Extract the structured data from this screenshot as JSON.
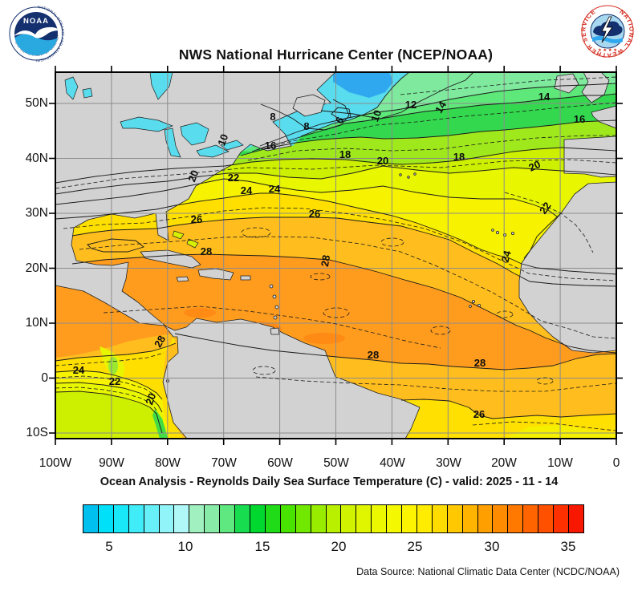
{
  "header": {
    "title": "NWS National Hurricane Center (NCEP/NOAA)"
  },
  "logos": {
    "noaa_name": "NOAA",
    "noaa_ring_top": "NATIONAL OCEANIC AND ATMOSPHERIC ADMINISTRATION",
    "noaa_ring_bottom": "U.S. DEPARTMENT OF COMMERCE",
    "nws_ring": "NATIONAL WEATHER SERVICE",
    "nws_stars": "★ ★ ★ ★"
  },
  "map": {
    "lat_labels": [
      "50N",
      "40N",
      "30N",
      "20N",
      "10N",
      "0",
      "10S"
    ],
    "lon_labels": [
      "100W",
      "90W",
      "80W",
      "70W",
      "60W",
      "50W",
      "40W",
      "30W",
      "20W",
      "10W",
      "0"
    ],
    "contour_labels": [
      "8",
      "8",
      "10",
      "6",
      "10",
      "12",
      "14",
      "14",
      "16",
      "16",
      "18",
      "18",
      "20",
      "20",
      "20",
      "22",
      "22",
      "22",
      "24",
      "24",
      "24",
      "24",
      "26",
      "26",
      "26",
      "28",
      "28",
      "28",
      "28",
      "28",
      "20"
    ],
    "contour_interval_c": "solid = 2C, dashed = 1C"
  },
  "caption": "Ocean Analysis - Reynolds Daily Sea Surface Temperature (C) - valid: 2025 - 11 - 14",
  "credit": "Data Source: National Climatic Data Center (NCDC/NOAA)",
  "colorbar": {
    "units": "C",
    "range": [
      3,
      36
    ],
    "ticks": [
      "5",
      "10",
      "15",
      "20",
      "25",
      "30",
      "35"
    ],
    "colors": [
      "#00C0F0",
      "#00E0F8",
      "#18E8F8",
      "#40ECF8",
      "#68F0F8",
      "#90F4F8",
      "#B0F8F8",
      "#A0F0C0",
      "#88ECA8",
      "#60E880",
      "#18DC50",
      "#00D830",
      "#20DC18",
      "#48E400",
      "#70E800",
      "#98EC00",
      "#B8F000",
      "#D0F400",
      "#E0F600",
      "#ECF800",
      "#F4F800",
      "#FCF400",
      "#FFEC00",
      "#FFDC00",
      "#FFC800",
      "#FFB400",
      "#FFA000",
      "#FF8C00",
      "#FF7800",
      "#FF6400",
      "#FF5000",
      "#FF3000",
      "#F81800"
    ]
  },
  "theme": {
    "land": "#D2D2D2",
    "lake": "#58DCEE",
    "grid": "#8C8C8C",
    "contour": "#1A1A1A",
    "navy": "#14306E",
    "nws_red": "#D42B1E",
    "sky": "#2FA8F0"
  }
}
